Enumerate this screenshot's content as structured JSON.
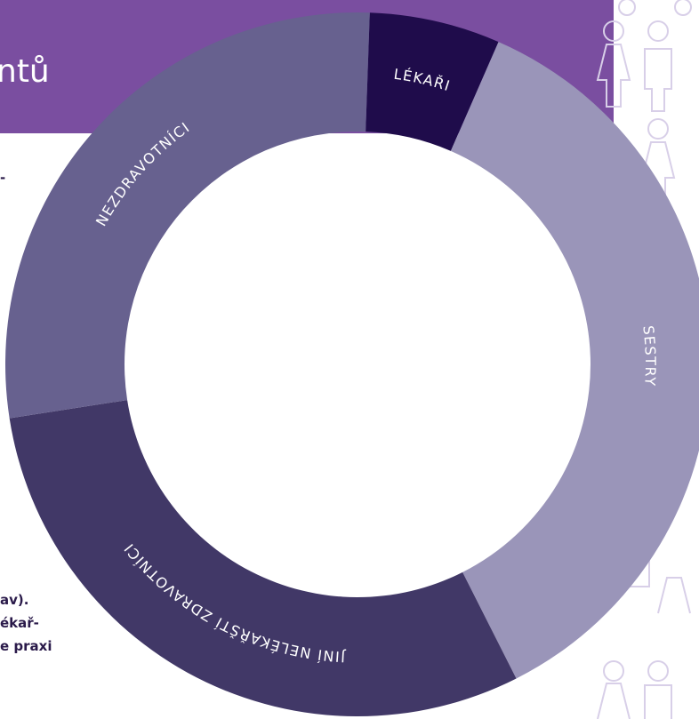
{
  "header": {
    "title": "ntů"
  },
  "fragments": [
    "-",
    "av).",
    "ékař-",
    "e praxi"
  ],
  "chart_data": {
    "type": "donut",
    "categories": [
      "LÉKAŘI",
      "SESTRY",
      "JINÍ NELÉKAŘŠTÍ ZDRAVOTNÍCI",
      "NEZDRAVOTNÍCI"
    ],
    "values": [
      6,
      36,
      30,
      28
    ],
    "colors": [
      "#1f0c4b",
      "#9a95b9",
      "#413867",
      "#67618f"
    ]
  }
}
